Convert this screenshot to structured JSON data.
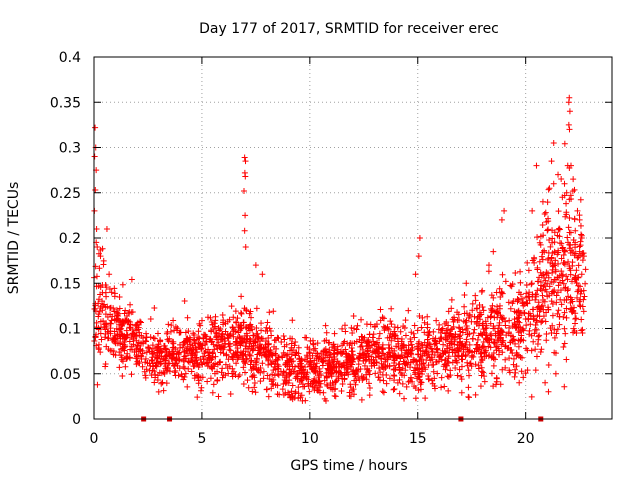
{
  "chart_data": {
    "type": "scatter",
    "title": "Day 177 of 2017, SRMTID for receiver erec",
    "xlabel": "GPS time / hours",
    "ylabel": "SRMTID / TECUs",
    "xlim": [
      0,
      24
    ],
    "ylim": [
      0,
      0.4
    ],
    "xticks": [
      0,
      5,
      10,
      15,
      20
    ],
    "xtick_labels": [
      "0",
      "5",
      "10",
      "15",
      "20"
    ],
    "yticks": [
      0,
      0.05,
      0.1,
      0.15,
      0.2,
      0.25,
      0.3,
      0.35,
      0.4
    ],
    "ytick_labels": [
      "0",
      "0.05",
      "0.1",
      "0.15",
      "0.2",
      "0.25",
      "0.3",
      "0.35",
      "0.4"
    ],
    "grid": true,
    "marker": "plus",
    "series_color": "#ff0000",
    "baseline_marks_x": [
      2.3,
      3.5,
      17.0,
      20.7
    ],
    "baseline_mark_color": "#cc0000",
    "envelope": {
      "x": [
        0,
        0.3,
        0.6,
        1.0,
        1.5,
        2.0,
        2.5,
        3.0,
        3.5,
        4.0,
        5.0,
        6.0,
        7.0,
        8.0,
        9.0,
        10.0,
        11.0,
        12.0,
        13.0,
        14.0,
        15.0,
        16.0,
        17.0,
        18.0,
        19.0,
        20.0,
        21.0,
        22.0,
        22.8
      ],
      "mean": [
        0.13,
        0.12,
        0.11,
        0.1,
        0.095,
        0.085,
        0.075,
        0.068,
        0.068,
        0.07,
        0.075,
        0.078,
        0.082,
        0.072,
        0.055,
        0.055,
        0.06,
        0.065,
        0.075,
        0.07,
        0.065,
        0.075,
        0.085,
        0.09,
        0.095,
        0.11,
        0.15,
        0.16,
        0.16
      ],
      "spread": [
        0.04,
        0.035,
        0.03,
        0.025,
        0.022,
        0.02,
        0.018,
        0.017,
        0.017,
        0.018,
        0.02,
        0.02,
        0.025,
        0.022,
        0.018,
        0.018,
        0.018,
        0.018,
        0.02,
        0.02,
        0.022,
        0.024,
        0.026,
        0.03,
        0.03,
        0.035,
        0.045,
        0.05,
        0.045
      ]
    },
    "highlight_points": [
      {
        "x": 0.05,
        "y": 0.322
      },
      {
        "x": 0.08,
        "y": 0.3
      },
      {
        "x": 0.03,
        "y": 0.29
      },
      {
        "x": 0.1,
        "y": 0.275
      },
      {
        "x": 0.06,
        "y": 0.253
      },
      {
        "x": 0.02,
        "y": 0.23
      },
      {
        "x": 0.12,
        "y": 0.21
      },
      {
        "x": 0.15,
        "y": 0.19
      },
      {
        "x": 0.3,
        "y": 0.18
      },
      {
        "x": 0.6,
        "y": 0.21
      },
      {
        "x": 0.7,
        "y": 0.16
      },
      {
        "x": 6.98,
        "y": 0.289
      },
      {
        "x": 7.02,
        "y": 0.285
      },
      {
        "x": 6.99,
        "y": 0.272
      },
      {
        "x": 7.01,
        "y": 0.268
      },
      {
        "x": 6.95,
        "y": 0.252
      },
      {
        "x": 7.0,
        "y": 0.225
      },
      {
        "x": 6.98,
        "y": 0.208
      },
      {
        "x": 7.03,
        "y": 0.19
      },
      {
        "x": 7.5,
        "y": 0.17
      },
      {
        "x": 7.8,
        "y": 0.16
      },
      {
        "x": 15.1,
        "y": 0.2
      },
      {
        "x": 15.05,
        "y": 0.18
      },
      {
        "x": 14.9,
        "y": 0.16
      },
      {
        "x": 18.5,
        "y": 0.185
      },
      {
        "x": 18.3,
        "y": 0.17
      },
      {
        "x": 19.0,
        "y": 0.23
      },
      {
        "x": 18.9,
        "y": 0.22
      },
      {
        "x": 20.3,
        "y": 0.23
      },
      {
        "x": 20.5,
        "y": 0.28
      },
      {
        "x": 20.8,
        "y": 0.24
      },
      {
        "x": 21.3,
        "y": 0.305
      },
      {
        "x": 21.2,
        "y": 0.285
      },
      {
        "x": 21.5,
        "y": 0.27
      },
      {
        "x": 21.3,
        "y": 0.26
      },
      {
        "x": 21.7,
        "y": 0.245
      },
      {
        "x": 21.1,
        "y": 0.255
      },
      {
        "x": 21.9,
        "y": 0.25
      },
      {
        "x": 22.0,
        "y": 0.35
      },
      {
        "x": 22.02,
        "y": 0.355
      },
      {
        "x": 22.05,
        "y": 0.34
      },
      {
        "x": 22.0,
        "y": 0.325
      },
      {
        "x": 22.03,
        "y": 0.32
      },
      {
        "x": 21.95,
        "y": 0.28
      },
      {
        "x": 22.1,
        "y": 0.28
      },
      {
        "x": 22.2,
        "y": 0.265
      },
      {
        "x": 21.8,
        "y": 0.26
      },
      {
        "x": 22.4,
        "y": 0.23
      },
      {
        "x": 22.5,
        "y": 0.22
      },
      {
        "x": 22.6,
        "y": 0.2
      },
      {
        "x": 22.5,
        "y": 0.185
      },
      {
        "x": 22.7,
        "y": 0.18
      },
      {
        "x": 22.6,
        "y": 0.16
      },
      {
        "x": 20.9,
        "y": 0.04
      },
      {
        "x": 21.4,
        "y": 0.05
      },
      {
        "x": 19.7,
        "y": 0.04
      },
      {
        "x": 3.0,
        "y": 0.03
      },
      {
        "x": 9.2,
        "y": 0.025
      },
      {
        "x": 11.2,
        "y": 0.025
      }
    ]
  }
}
